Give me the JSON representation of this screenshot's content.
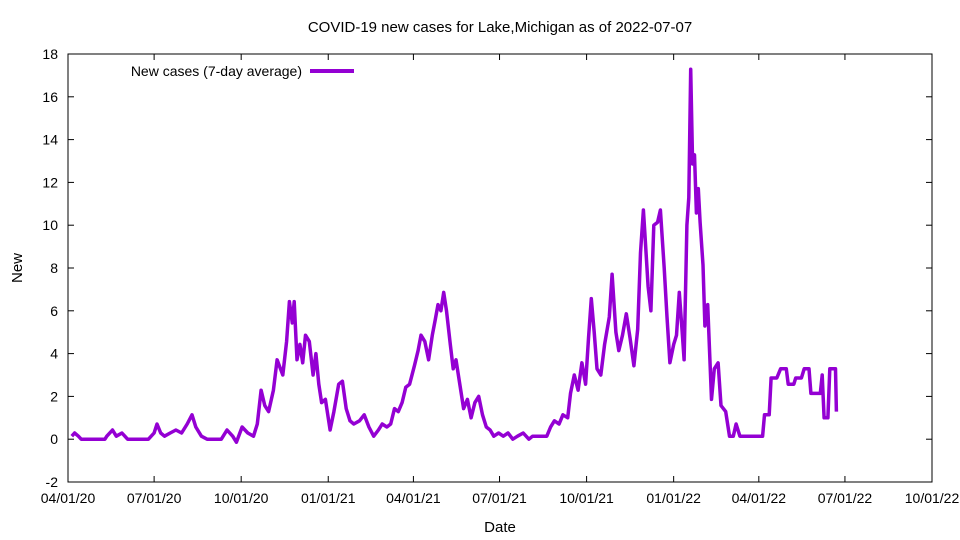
{
  "chart_data": {
    "type": "line",
    "title": "COVID-19 new cases for Lake,Michigan as of 2022-07-07",
    "xlabel": "Date",
    "ylabel": "New",
    "xlim": [
      "2020-04-01",
      "2022-10-01"
    ],
    "ylim": [
      -2,
      18
    ],
    "x_ticks": [
      "04/01/20",
      "07/01/20",
      "10/01/20",
      "01/01/21",
      "04/01/21",
      "07/01/21",
      "10/01/21",
      "01/01/22",
      "04/01/22",
      "07/01/22",
      "10/01/22"
    ],
    "y_ticks": [
      "-2",
      "0",
      "2",
      "4",
      "6",
      "8",
      "10",
      "12",
      "14",
      "16",
      "18"
    ],
    "grid": false,
    "legend_position": "top-left",
    "series": [
      {
        "name": "New cases (7-day average)",
        "color": "#9400d3",
        "points": [
          [
            "2020-04-05",
            0.14
          ],
          [
            "2020-04-08",
            0.29
          ],
          [
            "2020-04-12",
            0.14
          ],
          [
            "2020-04-15",
            0.0
          ],
          [
            "2020-05-10",
            0.0
          ],
          [
            "2020-05-12",
            0.14
          ],
          [
            "2020-05-18",
            0.43
          ],
          [
            "2020-05-22",
            0.14
          ],
          [
            "2020-05-28",
            0.29
          ],
          [
            "2020-06-03",
            0.0
          ],
          [
            "2020-06-25",
            0.0
          ],
          [
            "2020-07-01",
            0.29
          ],
          [
            "2020-07-04",
            0.71
          ],
          [
            "2020-07-08",
            0.29
          ],
          [
            "2020-07-12",
            0.14
          ],
          [
            "2020-07-18",
            0.29
          ],
          [
            "2020-07-24",
            0.43
          ],
          [
            "2020-07-30",
            0.29
          ],
          [
            "2020-08-05",
            0.71
          ],
          [
            "2020-08-10",
            1.14
          ],
          [
            "2020-08-14",
            0.57
          ],
          [
            "2020-08-20",
            0.14
          ],
          [
            "2020-08-26",
            0.0
          ],
          [
            "2020-09-10",
            0.0
          ],
          [
            "2020-09-16",
            0.43
          ],
          [
            "2020-09-22",
            0.14
          ],
          [
            "2020-09-26",
            -0.14
          ],
          [
            "2020-10-02",
            0.57
          ],
          [
            "2020-10-08",
            0.29
          ],
          [
            "2020-10-14",
            0.14
          ],
          [
            "2020-10-18",
            0.71
          ],
          [
            "2020-10-22",
            2.29
          ],
          [
            "2020-10-26",
            1.57
          ],
          [
            "2020-10-30",
            1.29
          ],
          [
            "2020-11-04",
            2.29
          ],
          [
            "2020-11-08",
            3.71
          ],
          [
            "2020-11-14",
            3.0
          ],
          [
            "2020-11-18",
            4.57
          ],
          [
            "2020-11-21",
            6.43
          ],
          [
            "2020-11-24",
            5.43
          ],
          [
            "2020-11-26",
            6.43
          ],
          [
            "2020-11-29",
            3.71
          ],
          [
            "2020-12-02",
            4.43
          ],
          [
            "2020-12-05",
            3.57
          ],
          [
            "2020-12-08",
            4.86
          ],
          [
            "2020-12-12",
            4.57
          ],
          [
            "2020-12-16",
            3.0
          ],
          [
            "2020-12-19",
            4.0
          ],
          [
            "2020-12-22",
            2.57
          ],
          [
            "2020-12-25",
            1.71
          ],
          [
            "2020-12-29",
            1.86
          ],
          [
            "2021-01-03",
            0.43
          ],
          [
            "2021-01-07",
            1.29
          ],
          [
            "2021-01-12",
            2.57
          ],
          [
            "2021-01-16",
            2.71
          ],
          [
            "2021-01-20",
            1.43
          ],
          [
            "2021-01-24",
            0.86
          ],
          [
            "2021-01-28",
            0.71
          ],
          [
            "2021-02-03",
            0.86
          ],
          [
            "2021-02-08",
            1.14
          ],
          [
            "2021-02-13",
            0.57
          ],
          [
            "2021-02-18",
            0.14
          ],
          [
            "2021-02-23",
            0.43
          ],
          [
            "2021-02-27",
            0.71
          ],
          [
            "2021-03-04",
            0.57
          ],
          [
            "2021-03-08",
            0.71
          ],
          [
            "2021-03-12",
            1.43
          ],
          [
            "2021-03-16",
            1.29
          ],
          [
            "2021-03-20",
            1.71
          ],
          [
            "2021-03-24",
            2.43
          ],
          [
            "2021-03-28",
            2.57
          ],
          [
            "2021-04-02",
            3.43
          ],
          [
            "2021-04-06",
            4.14
          ],
          [
            "2021-04-09",
            4.86
          ],
          [
            "2021-04-13",
            4.57
          ],
          [
            "2021-04-17",
            3.71
          ],
          [
            "2021-04-21",
            4.86
          ],
          [
            "2021-04-24",
            5.57
          ],
          [
            "2021-04-27",
            6.29
          ],
          [
            "2021-04-30",
            6.0
          ],
          [
            "2021-05-03",
            6.86
          ],
          [
            "2021-05-06",
            6.0
          ],
          [
            "2021-05-10",
            4.43
          ],
          [
            "2021-05-13",
            3.29
          ],
          [
            "2021-05-16",
            3.71
          ],
          [
            "2021-05-20",
            2.57
          ],
          [
            "2021-05-24",
            1.43
          ],
          [
            "2021-05-28",
            1.86
          ],
          [
            "2021-06-01",
            1.0
          ],
          [
            "2021-06-05",
            1.71
          ],
          [
            "2021-06-09",
            2.0
          ],
          [
            "2021-06-13",
            1.14
          ],
          [
            "2021-06-17",
            0.57
          ],
          [
            "2021-06-21",
            0.43
          ],
          [
            "2021-06-25",
            0.14
          ],
          [
            "2021-06-30",
            0.29
          ],
          [
            "2021-07-05",
            0.14
          ],
          [
            "2021-07-10",
            0.29
          ],
          [
            "2021-07-15",
            0.0
          ],
          [
            "2021-07-20",
            0.14
          ],
          [
            "2021-07-26",
            0.29
          ],
          [
            "2021-08-01",
            0.0
          ],
          [
            "2021-08-05",
            0.14
          ],
          [
            "2021-08-20",
            0.14
          ],
          [
            "2021-08-24",
            0.57
          ],
          [
            "2021-08-28",
            0.86
          ],
          [
            "2021-09-02",
            0.71
          ],
          [
            "2021-09-06",
            1.14
          ],
          [
            "2021-09-11",
            1.0
          ],
          [
            "2021-09-14",
            2.14
          ],
          [
            "2021-09-18",
            3.0
          ],
          [
            "2021-09-22",
            2.29
          ],
          [
            "2021-09-26",
            3.57
          ],
          [
            "2021-09-30",
            2.57
          ],
          [
            "2021-10-03",
            4.71
          ],
          [
            "2021-10-06",
            6.57
          ],
          [
            "2021-10-09",
            5.0
          ],
          [
            "2021-10-12",
            3.29
          ],
          [
            "2021-10-16",
            3.0
          ],
          [
            "2021-10-20",
            4.43
          ],
          [
            "2021-10-25",
            5.71
          ],
          [
            "2021-10-28",
            7.71
          ],
          [
            "2021-11-01",
            5.0
          ],
          [
            "2021-11-04",
            4.14
          ],
          [
            "2021-11-08",
            4.86
          ],
          [
            "2021-11-12",
            5.86
          ],
          [
            "2021-11-16",
            4.71
          ],
          [
            "2021-11-20",
            3.43
          ],
          [
            "2021-11-24",
            5.14
          ],
          [
            "2021-11-27",
            8.71
          ],
          [
            "2021-11-30",
            10.71
          ],
          [
            "2021-12-02",
            9.29
          ],
          [
            "2021-12-05",
            7.14
          ],
          [
            "2021-12-08",
            6.0
          ],
          [
            "2021-12-11",
            10.0
          ],
          [
            "2021-12-15",
            10.14
          ],
          [
            "2021-12-18",
            10.71
          ],
          [
            "2021-12-22",
            8.0
          ],
          [
            "2021-12-25",
            5.71
          ],
          [
            "2021-12-28",
            3.57
          ],
          [
            "2022-01-01",
            4.43
          ],
          [
            "2022-01-04",
            4.86
          ],
          [
            "2022-01-07",
            6.86
          ],
          [
            "2022-01-10",
            5.0
          ],
          [
            "2022-01-12",
            3.71
          ],
          [
            "2022-01-15",
            10.0
          ],
          [
            "2022-01-17",
            11.29
          ],
          [
            "2022-01-19",
            17.29
          ],
          [
            "2022-01-21",
            12.86
          ],
          [
            "2022-01-23",
            13.29
          ],
          [
            "2022-01-25",
            10.57
          ],
          [
            "2022-01-27",
            11.71
          ],
          [
            "2022-01-29",
            10.14
          ],
          [
            "2022-02-01",
            8.14
          ],
          [
            "2022-02-03",
            5.29
          ],
          [
            "2022-02-06",
            6.29
          ],
          [
            "2022-02-10",
            1.86
          ],
          [
            "2022-02-13",
            3.29
          ],
          [
            "2022-02-17",
            3.57
          ],
          [
            "2022-02-20",
            1.57
          ],
          [
            "2022-02-25",
            1.29
          ],
          [
            "2022-03-01",
            0.14
          ],
          [
            "2022-03-05",
            0.14
          ],
          [
            "2022-03-08",
            0.71
          ],
          [
            "2022-03-12",
            0.14
          ],
          [
            "2022-04-05",
            0.14
          ],
          [
            "2022-04-07",
            1.14
          ],
          [
            "2022-04-12",
            1.14
          ],
          [
            "2022-04-14",
            2.86
          ],
          [
            "2022-04-20",
            2.86
          ],
          [
            "2022-04-24",
            3.29
          ],
          [
            "2022-04-30",
            3.29
          ],
          [
            "2022-05-02",
            2.57
          ],
          [
            "2022-05-08",
            2.57
          ],
          [
            "2022-05-10",
            2.86
          ],
          [
            "2022-05-16",
            2.86
          ],
          [
            "2022-05-19",
            3.29
          ],
          [
            "2022-05-24",
            3.29
          ],
          [
            "2022-05-26",
            2.14
          ],
          [
            "2022-06-05",
            2.14
          ],
          [
            "2022-06-07",
            3.0
          ],
          [
            "2022-06-09",
            1.0
          ],
          [
            "2022-06-13",
            1.0
          ],
          [
            "2022-06-15",
            3.29
          ],
          [
            "2022-06-21",
            3.29
          ],
          [
            "2022-06-22",
            1.29
          ]
        ]
      }
    ]
  }
}
